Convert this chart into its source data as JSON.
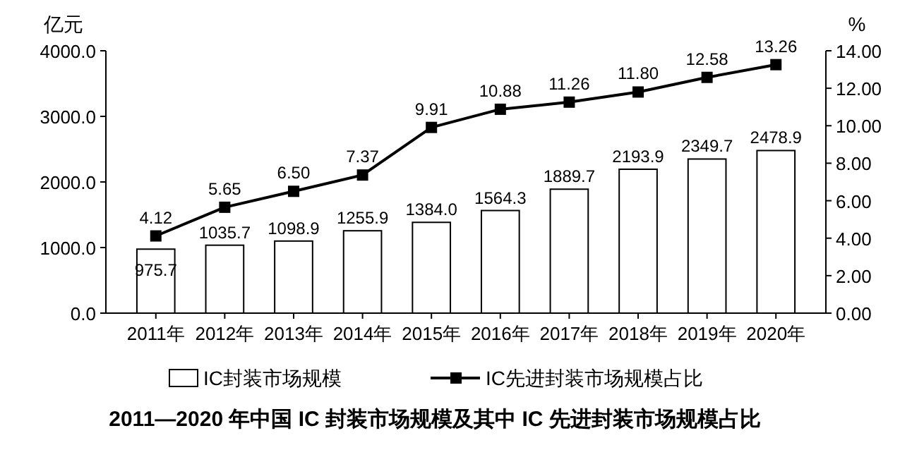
{
  "chart_data": {
    "type": "bar",
    "title": "2011—2020 年中国 IC 封装市场规模及其中 IC 先进封装市场规模占比",
    "categories": [
      "2011年",
      "2012年",
      "2013年",
      "2014年",
      "2015年",
      "2016年",
      "2017年",
      "2018年",
      "2019年",
      "2020年"
    ],
    "series": [
      {
        "name": "IC封装市场规模",
        "color": "#ffffff",
        "values": [
          975.7,
          1035.7,
          1098.9,
          1255.9,
          1384.0,
          1564.3,
          1889.7,
          2193.9,
          2349.7,
          2478.9
        ],
        "value_labels": [
          "975.7",
          "1035.7",
          "1098.9",
          "1255.9",
          "1384.0",
          "1564.3",
          "1889.7",
          "2193.9",
          "2349.7",
          "2478.9"
        ]
      },
      {
        "name": "IC先进封装市场规模占比",
        "type": "line",
        "axis": "y2",
        "color": "#000000",
        "marker": "square",
        "values": [
          4.12,
          5.65,
          6.5,
          7.37,
          9.91,
          10.88,
          11.26,
          11.8,
          12.58,
          13.26
        ],
        "value_labels": [
          "4.12",
          "5.65",
          "6.50",
          "7.37",
          "9.91",
          "10.88",
          "11.26",
          "11.80",
          "12.58",
          "13.26"
        ]
      }
    ],
    "ylabel": "亿元",
    "y2label": "%",
    "ylim": [
      0,
      4000
    ],
    "yticks": [
      {
        "value": 0,
        "label": "0.0"
      },
      {
        "value": 1000,
        "label": "1000.0"
      },
      {
        "value": 2000,
        "label": "2000.0"
      },
      {
        "value": 3000,
        "label": "3000.0"
      },
      {
        "value": 4000,
        "label": "4000.0"
      }
    ],
    "y2lim": [
      0,
      14
    ],
    "y2ticks": [
      {
        "value": 0,
        "label": "0.00"
      },
      {
        "value": 2,
        "label": "2.00"
      },
      {
        "value": 4,
        "label": "4.00"
      },
      {
        "value": 6,
        "label": "6.00"
      },
      {
        "value": 8,
        "label": "8.00"
      },
      {
        "value": 10,
        "label": "10.00"
      },
      {
        "value": 12,
        "label": "12.00"
      },
      {
        "value": 14,
        "label": "14.00"
      }
    ],
    "legend": "bottom",
    "grid": false
  }
}
